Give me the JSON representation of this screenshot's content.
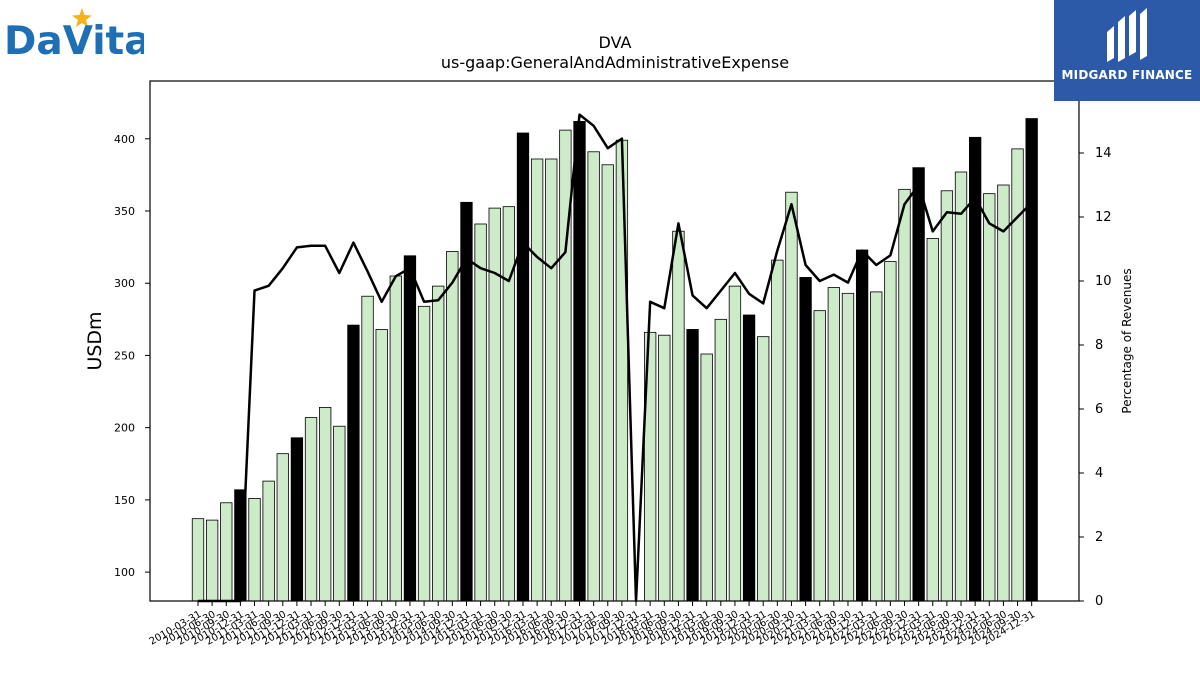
{
  "logos": {
    "left_brand": "DaVita",
    "right_brand": "MIDGARD FINANCE"
  },
  "chart_data": {
    "type": "bar",
    "title": "DVA",
    "subtitle": "us-gaap:GeneralAndAdministrativeExpense",
    "ylabel": "USDm",
    "y2label": "Percentage of Revenues",
    "ylim": [
      80,
      440
    ],
    "y2lim": [
      0,
      16.25
    ],
    "yticks": [
      100,
      150,
      200,
      250,
      300,
      350,
      400
    ],
    "y2ticks": [
      0,
      2,
      4,
      6,
      8,
      10,
      12,
      14
    ],
    "grid": false,
    "colors": {
      "quarter_bar": "#cdeac9",
      "year_end_bar": "#000000",
      "line": "#000000"
    },
    "categories": [
      "2010-03-31",
      "2010-06-30",
      "2010-09-30",
      "2010-12-31",
      "2011-03-31",
      "2011-06-30",
      "2011-09-30",
      "2011-12-31",
      "2012-03-31",
      "2012-06-30",
      "2012-09-30",
      "2012-12-31",
      "2013-03-31",
      "2013-06-30",
      "2013-09-30",
      "2013-12-31",
      "2014-03-31",
      "2014-06-30",
      "2014-09-30",
      "2014-12-31",
      "2015-03-31",
      "2015-06-30",
      "2015-09-30",
      "2015-12-31",
      "2016-03-31",
      "2016-06-30",
      "2016-09-30",
      "2016-12-31",
      "2017-03-31",
      "2017-06-30",
      "2017-09-30",
      "2017-12-31",
      "2018-03-31",
      "2018-06-30",
      "2018-09-30",
      "2018-12-31",
      "2019-03-31",
      "2019-06-30",
      "2019-09-30",
      "2019-12-31",
      "2020-03-31",
      "2020-06-30",
      "2020-09-30",
      "2020-12-31",
      "2021-03-31",
      "2021-06-30",
      "2021-09-30",
      "2021-12-31",
      "2022-03-31",
      "2022-06-30",
      "2022-09-30",
      "2022-12-31",
      "2023-03-31",
      "2023-06-30",
      "2023-09-30",
      "2023-12-31",
      "2024-03-31",
      "2024-06-30",
      "2024-09-30",
      "2024-12-31"
    ],
    "year_end_flags": [
      false,
      false,
      false,
      true,
      false,
      false,
      false,
      true,
      false,
      false,
      false,
      true,
      false,
      false,
      false,
      true,
      false,
      false,
      false,
      true,
      false,
      false,
      false,
      true,
      false,
      false,
      false,
      true,
      false,
      false,
      false,
      true,
      false,
      false,
      false,
      true,
      false,
      false,
      false,
      true,
      false,
      false,
      false,
      true,
      false,
      false,
      false,
      true,
      false,
      false,
      false,
      true,
      false,
      false,
      false,
      true,
      false,
      false,
      false,
      true
    ],
    "series": [
      {
        "name": "USDm",
        "values": [
          137,
          136,
          148,
          157,
          151,
          163,
          182,
          193,
          207,
          214,
          201,
          271,
          291,
          268,
          305,
          319,
          284,
          298,
          322,
          356,
          341,
          352,
          353,
          404,
          386,
          386,
          406,
          412,
          391,
          382,
          399,
          null,
          266,
          264,
          336,
          268,
          251,
          275,
          298,
          278,
          263,
          316,
          363,
          304,
          281,
          297,
          293,
          323,
          294,
          315,
          365,
          380,
          331,
          364,
          377,
          401,
          362,
          368,
          393,
          414
        ]
      },
      {
        "name": "Percentage of Revenues",
        "values": [
          0,
          0,
          0,
          0,
          9.7,
          9.85,
          10.4,
          11.05,
          11.1,
          11.1,
          10.25,
          11.2,
          10.3,
          9.35,
          10.15,
          10.4,
          9.35,
          9.4,
          9.95,
          10.7,
          10.4,
          10.25,
          10.0,
          11.2,
          10.75,
          10.4,
          10.9,
          15.2,
          14.85,
          14.15,
          14.45,
          0,
          9.35,
          9.15,
          11.8,
          9.55,
          9.15,
          9.7,
          10.25,
          9.6,
          9.3,
          10.95,
          12.4,
          10.5,
          10.0,
          10.2,
          9.95,
          10.95,
          10.5,
          10.8,
          12.4,
          13.0,
          11.55,
          12.15,
          12.1,
          12.6,
          11.8,
          11.55,
          12.0,
          12.45
        ]
      }
    ]
  }
}
